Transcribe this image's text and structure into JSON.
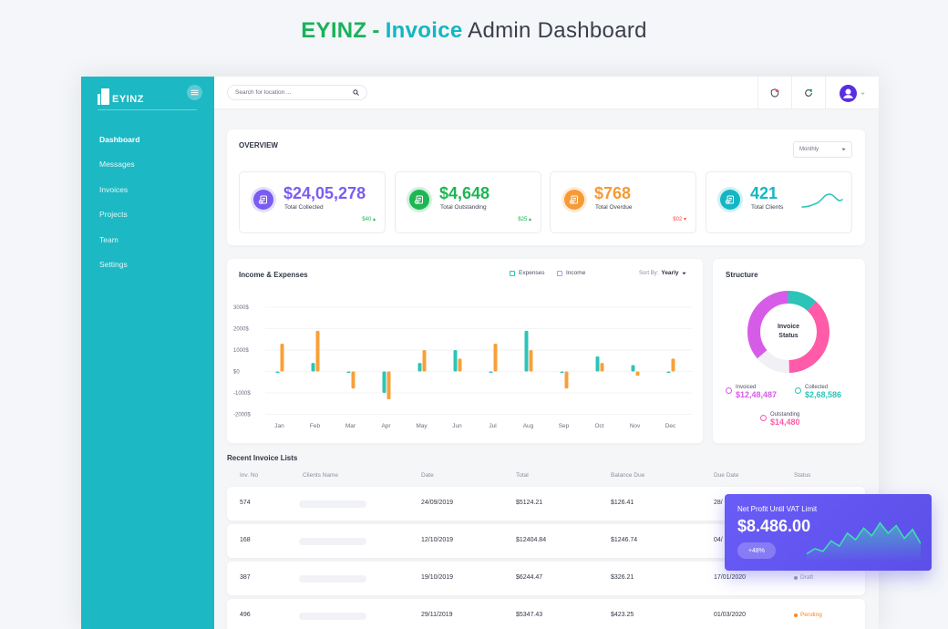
{
  "heading": {
    "brand": "EYINZ",
    "dash": "-",
    "accent": "Invoice",
    "rest": "Admin Dashboard"
  },
  "sidebar": {
    "logo_text": "EYINZ",
    "items": [
      {
        "label": "Dashboard",
        "active": true
      },
      {
        "label": "Messages",
        "active": false
      },
      {
        "label": "Invoices",
        "active": false
      },
      {
        "label": "Projects",
        "active": false
      },
      {
        "label": "Team",
        "active": false
      },
      {
        "label": "Settings",
        "active": false
      }
    ]
  },
  "topbar": {
    "search_placeholder": "Search for location ...",
    "icons": [
      "shield-icon",
      "refresh-icon",
      "user-avatar-icon"
    ]
  },
  "overview": {
    "title": "OVERVIEW",
    "period": "Monthly",
    "stats": [
      {
        "value": "$24,05,278",
        "label": "Total Collected",
        "delta": "$40",
        "trend": "up",
        "color": "#7a5cf2",
        "icon": "invoice-icon"
      },
      {
        "value": "$4,648",
        "label": "Total Outstanding",
        "delta": "$25",
        "trend": "up",
        "color": "#1db653",
        "icon": "invoice-icon"
      },
      {
        "value": "$768",
        "label": "Total Overdue",
        "delta": "$02",
        "trend": "down",
        "color": "#f59a35",
        "icon": "invoice-icon"
      },
      {
        "value": "421",
        "label": "Total Clients",
        "delta": "",
        "trend": "",
        "color": "#14b6c3",
        "icon": "clients-icon"
      }
    ]
  },
  "income": {
    "title": "Income & Expenses",
    "legend_expenses": "Expenses",
    "legend_income": "Income",
    "sort_label": "Sort By:",
    "sort_value": "Yearly"
  },
  "chart_data": {
    "type": "bar",
    "title": "Income & Expenses",
    "categories": [
      "Jan",
      "Feb",
      "Mar",
      "Apr",
      "May",
      "Jun",
      "Jul",
      "Aug",
      "Sep",
      "Oct",
      "Nov",
      "Dec"
    ],
    "y_ticks": [
      "3000$",
      "2000$",
      "1000$",
      "$0",
      "-1000$",
      "-2000$"
    ],
    "ylim": [
      -2000,
      3000
    ],
    "series": [
      {
        "name": "Expenses",
        "color": "#2cc4b8",
        "values": [
          0,
          400,
          0,
          -1000,
          400,
          1000,
          0,
          1900,
          0,
          700,
          300,
          0
        ]
      },
      {
        "name": "Income",
        "color": "#f7a03a",
        "values": [
          1300,
          1900,
          -800,
          -1300,
          1000,
          600,
          1300,
          1000,
          -800,
          400,
          -200,
          600
        ]
      }
    ],
    "xlabel": "",
    "ylabel": "",
    "grid": true,
    "legend": "top-right"
  },
  "structure": {
    "title": "Structure",
    "center_line1": "Invoice",
    "center_line2": "Status",
    "donut": [
      {
        "name": "Collected",
        "share": 0.38,
        "color": "#ff5ba8"
      },
      {
        "name": "Outstanding",
        "share": 0.14,
        "color": "#f0f0f5"
      },
      {
        "name": "Invoiced",
        "share": 0.36,
        "color": "#d65ce8"
      },
      {
        "name": "Collected-top",
        "share": 0.12,
        "color": "#2cc4b8"
      }
    ],
    "legend": [
      {
        "name": "Invoiced",
        "value": "$12,48,487",
        "color": "#d65ce8"
      },
      {
        "name": "Collected",
        "value": "$2,68,586",
        "color": "#2cc4b8"
      },
      {
        "name": "Outstanding",
        "value": "$14,480",
        "color": "#ff5ba8"
      }
    ]
  },
  "recent": {
    "title": "Recent Invoice Lists",
    "headers": [
      "Inv. No",
      "Clients Name",
      "Date",
      "Total",
      "Balance Due",
      "Due Date",
      "Status"
    ],
    "rows": [
      {
        "inv": "574",
        "date": "24/09/2019",
        "total": "$5124.21",
        "balance": "$126.41",
        "due": "28/",
        "status": "",
        "status_color": ""
      },
      {
        "inv": "168",
        "date": "12/10/2019",
        "total": "$12404.84",
        "balance": "$1246.74",
        "due": "04/",
        "status": "",
        "status_color": ""
      },
      {
        "inv": "387",
        "date": "19/10/2019",
        "total": "$6244.47",
        "balance": "$326.21",
        "due": "17/01/2020",
        "status": "Draft",
        "status_color": "#9aa0ab"
      },
      {
        "inv": "496",
        "date": "29/11/2019",
        "total": "$5347.43",
        "balance": "$423.25",
        "due": "01/03/2020",
        "status": "Pending",
        "status_color": "#f7891f"
      }
    ]
  },
  "profit_card": {
    "title": "Net Profit Until VAT Limit",
    "value": "$8.486.00",
    "badge": "+48%",
    "trend_points": [
      6,
      10,
      8,
      16,
      12,
      22,
      17,
      26,
      20,
      30,
      22,
      28,
      18,
      25,
      14
    ]
  }
}
